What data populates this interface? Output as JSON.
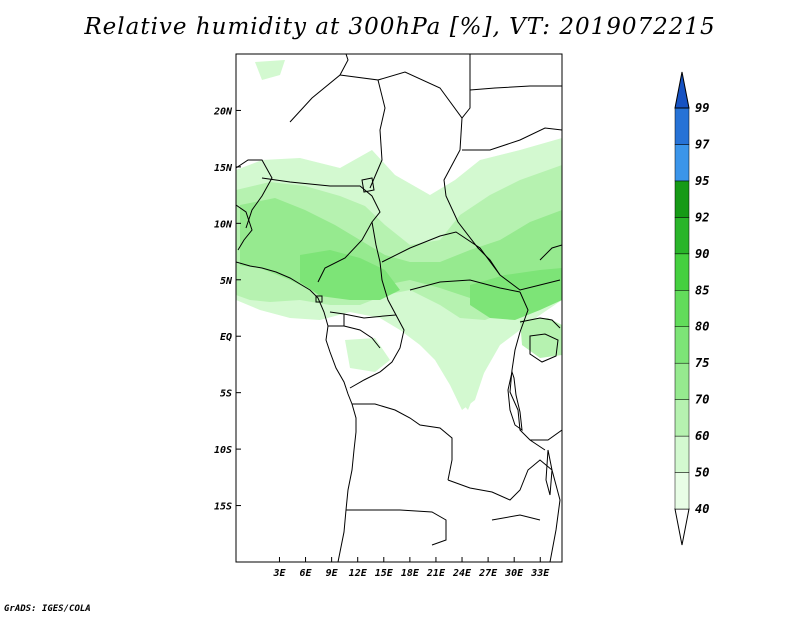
{
  "title": "Relative humidity at 300hPa [%], VT: 2019072215",
  "credit": "GrADS: IGES/COLA",
  "map": {
    "lon_range": [
      -2,
      35.5
    ],
    "lat_range": [
      -20,
      25
    ],
    "x_ticks": [
      "3E",
      "6E",
      "9E",
      "12E",
      "15E",
      "18E",
      "21E",
      "24E",
      "27E",
      "30E",
      "33E"
    ],
    "x_tick_values": [
      3,
      6,
      9,
      12,
      15,
      18,
      21,
      24,
      27,
      30,
      33
    ],
    "y_ticks": [
      "20N",
      "15N",
      "10N",
      "5N",
      "EQ",
      "5S",
      "10S",
      "15S"
    ],
    "y_tick_values": [
      20,
      15,
      10,
      5,
      0,
      -5,
      -10,
      -15
    ]
  },
  "legend": {
    "levels": [
      "40",
      "50",
      "60",
      "70",
      "75",
      "80",
      "85",
      "90",
      "92",
      "95",
      "97",
      "99"
    ],
    "colors": [
      "#e8fde6",
      "#d3f9d0",
      "#b6f2b0",
      "#96ea8f",
      "#7de477",
      "#62dc5b",
      "#45d03f",
      "#2ab52a",
      "#169a16",
      "#3b95ea",
      "#2672d6",
      "#1652c2"
    ]
  }
}
